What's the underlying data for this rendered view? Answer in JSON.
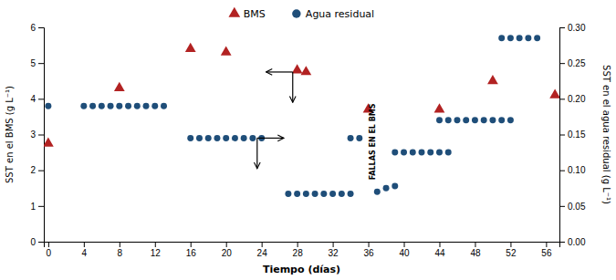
{
  "chart_data": {
    "type": "scatter",
    "xlabel": "Tiempo (días)",
    "ylabel": "SST en el BMS (g L⁻¹)",
    "y2label": "SST en el agua residual (g L⁻¹)",
    "xlim": [
      -0.5,
      57.5
    ],
    "ylim": [
      0,
      6
    ],
    "y2lim": [
      0.0,
      0.3
    ],
    "xticks": [
      0,
      4,
      8,
      12,
      16,
      20,
      24,
      28,
      32,
      36,
      40,
      44,
      48,
      52,
      56
    ],
    "yticks": [
      0,
      1,
      2,
      3,
      4,
      5,
      6
    ],
    "y2ticks": [
      {
        "value": 0.0,
        "label": "0.00"
      },
      {
        "value": 0.05,
        "label": "0.05"
      },
      {
        "value": 0.1,
        "label": "0.10"
      },
      {
        "value": 0.15,
        "label": "0.15"
      },
      {
        "value": 0.2,
        "label": "0.20"
      },
      {
        "value": 0.25,
        "label": "0.25"
      },
      {
        "value": 0.3,
        "label": "0.30"
      }
    ],
    "grid": false,
    "legend": "top",
    "series": [
      {
        "name": "BMS",
        "color": "#b22222",
        "marker": "triangle",
        "x": [
          0,
          8,
          16,
          20,
          28,
          29,
          36,
          44,
          50,
          57
        ],
        "values": [
          2.75,
          4.3,
          5.4,
          5.3,
          4.8,
          4.75,
          3.7,
          3.7,
          4.5,
          4.1
        ]
      },
      {
        "name": "Agua residual",
        "color": "#1f4e79",
        "marker": "circle",
        "axis": "y2",
        "x": [
          0,
          4,
          5,
          6,
          7,
          8,
          9,
          10,
          11,
          12,
          13,
          16,
          17,
          18,
          19,
          20,
          21,
          22,
          23,
          24,
          27,
          28,
          29,
          30,
          31,
          32,
          33,
          34,
          34,
          35,
          37,
          38,
          39,
          39,
          40,
          41,
          42,
          43,
          44,
          45,
          44,
          45,
          46,
          47,
          48,
          49,
          50,
          51,
          52,
          51,
          52,
          53,
          54,
          55
        ],
        "values": [
          0.19,
          0.19,
          0.19,
          0.19,
          0.19,
          0.19,
          0.19,
          0.19,
          0.19,
          0.19,
          0.19,
          0.145,
          0.145,
          0.145,
          0.145,
          0.145,
          0.145,
          0.145,
          0.145,
          0.145,
          0.067,
          0.067,
          0.067,
          0.067,
          0.067,
          0.067,
          0.067,
          0.067,
          0.145,
          0.145,
          0.07,
          0.075,
          0.078,
          0.125,
          0.125,
          0.125,
          0.125,
          0.125,
          0.125,
          0.125,
          0.17,
          0.17,
          0.17,
          0.17,
          0.17,
          0.17,
          0.17,
          0.17,
          0.17,
          0.285,
          0.285,
          0.285,
          0.285,
          0.285
        ]
      }
    ],
    "arrows": [
      {
        "x": 23.5,
        "y": 2.9,
        "x_end": 26.5,
        "y_end": 2.9
      },
      {
        "x": 23.5,
        "y": 2.9,
        "x_end": 23.5,
        "y_end": 2.05
      },
      {
        "x": 27.5,
        "y": 4.75,
        "x_end": 24.5,
        "y_end": 4.75
      },
      {
        "x": 27.5,
        "y": 4.75,
        "x_end": 27.5,
        "y_end": 3.9
      }
    ],
    "annotations": [
      {
        "text": "FALLAS EN EL BMS",
        "x": 36.5,
        "y": 2.8
      }
    ]
  }
}
